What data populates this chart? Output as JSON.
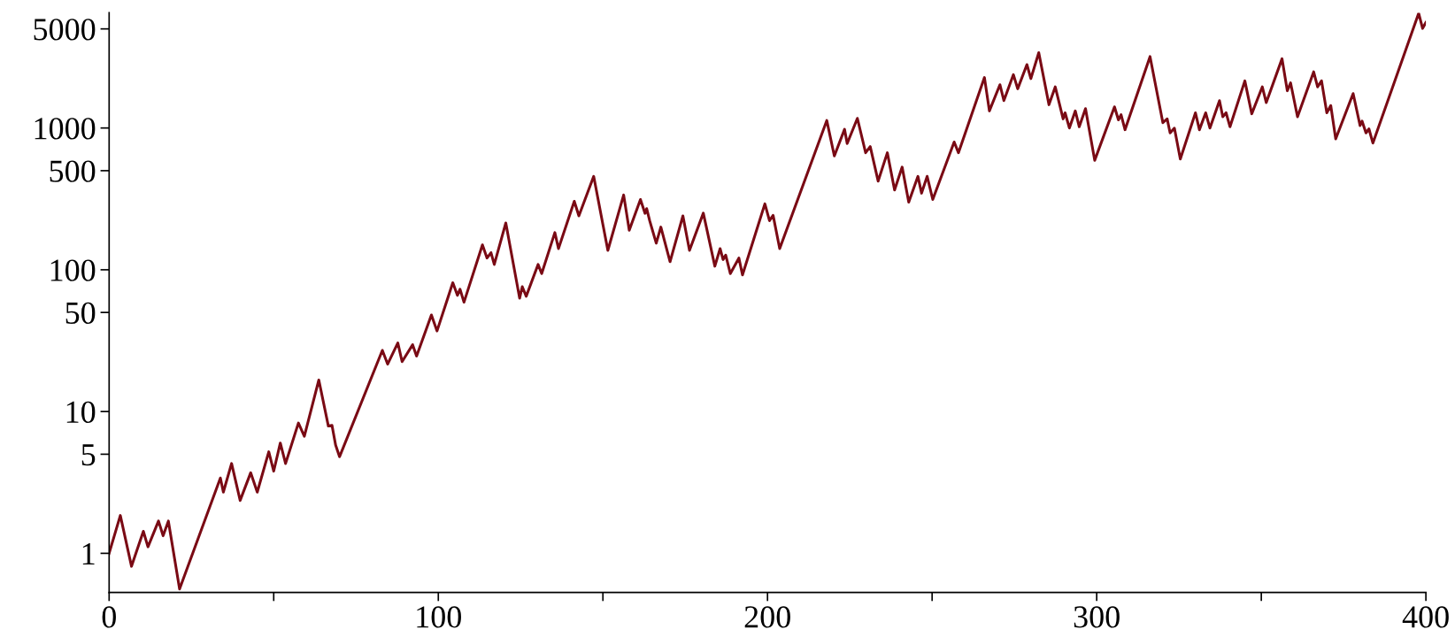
{
  "chart_data": {
    "type": "line",
    "log": "y",
    "xlim": [
      0,
      400
    ],
    "ylim": [
      0.53,
      6500
    ],
    "xticks": [
      0,
      {
        "value": 50,
        "label": null
      },
      100,
      {
        "value": 150,
        "label": null
      },
      200,
      {
        "value": 250,
        "label": null
      },
      300,
      {
        "value": 350,
        "label": null
      },
      400
    ],
    "yticks": [
      1,
      5,
      10,
      50,
      100,
      500,
      1000,
      5000
    ],
    "grid": false,
    "marker": "none",
    "line_style": "solid",
    "series": [
      {
        "color": "#7a0a14",
        "x": [
          0,
          3.4,
          6.8,
          10.4,
          11.8,
          15,
          16.4,
          18,
          21.4,
          33.8,
          34.7,
          37.2,
          39.8,
          43,
          45,
          48.5,
          50,
          52,
          53.6,
          57.5,
          59.3,
          63.7,
          66.6,
          67.7,
          68.8,
          70,
          83,
          84.6,
          87.7,
          89,
          92.2,
          93.4,
          97.9,
          99.6,
          104.4,
          105.8,
          106.6,
          107.8,
          113.4,
          114.8,
          116,
          117,
          120.5,
          124.7,
          125.5,
          126.7,
          130.3,
          131.4,
          135.4,
          136.5,
          141.3,
          142.7,
          147.2,
          151.5,
          156.3,
          158,
          161.4,
          162.8,
          163.3,
          164.2,
          166.2,
          167.6,
          170.4,
          174.3,
          176.3,
          180.5,
          184,
          185.6,
          186.5,
          187.3,
          188.7,
          191.3,
          192.4,
          199.2,
          200.6,
          201.7,
          203.7,
          218,
          220.3,
          223.4,
          224.2,
          227.3,
          229.8,
          231.2,
          233.6,
          236.4,
          238.6,
          240.9,
          242.9,
          245.7,
          246.8,
          248.5,
          250.2,
          256.7,
          258,
          265.9,
          267.4,
          270.6,
          271.8,
          274.7,
          276,
          278.8,
          280,
          282.4,
          285.5,
          287.4,
          289.8,
          290.4,
          291.7,
          293.5,
          294.7,
          296.6,
          299.4,
          305.4,
          306.6,
          307.4,
          308.6,
          316.2,
          320.1,
          321.4,
          322.3,
          323.6,
          325.4,
          330,
          331.2,
          333.1,
          334.4,
          337.3,
          338.3,
          339.3,
          340.5,
          345,
          347.1,
          350.3,
          351.5,
          356.3,
          357.9,
          358.9,
          361,
          365.9,
          367.1,
          368.3,
          369.9,
          371.1,
          372.6,
          377.9,
          380,
          380.6,
          381.8,
          382.7,
          383.9,
          397.8,
          399,
          400
        ],
        "values": [
          1,
          1.85,
          0.81,
          1.43,
          1.11,
          1.69,
          1.33,
          1.69,
          0.56,
          3.4,
          2.7,
          4.3,
          2.36,
          3.7,
          2.7,
          5.2,
          3.8,
          6.0,
          4.3,
          8.3,
          6.7,
          16.7,
          7.9,
          8,
          5.8,
          4.8,
          27,
          21.6,
          30.5,
          22.5,
          29.6,
          24.6,
          48,
          37,
          81,
          66,
          73,
          59,
          150,
          121,
          132,
          109,
          214,
          63,
          76,
          65,
          109,
          94,
          183,
          141,
          304,
          240,
          456,
          137,
          337,
          190,
          313,
          250,
          270,
          222,
          154,
          200,
          114,
          240,
          137,
          251,
          106,
          141,
          118,
          127,
          94,
          121,
          92,
          292,
          222,
          242,
          141,
          1130,
          635,
          979,
          777,
          1170,
          669,
          740,
          422,
          669,
          365,
          530,
          300,
          456,
          347,
          456,
          313,
          796,
          669,
          2270,
          1320,
          2020,
          1560,
          2380,
          1890,
          2800,
          2230,
          3400,
          1460,
          1950,
          1160,
          1280,
          1000,
          1320,
          1020,
          1370,
          592,
          1410,
          1140,
          1240,
          972,
          3190,
          1090,
          1160,
          923,
          998,
          604,
          1280,
          972,
          1280,
          998,
          1560,
          1200,
          1280,
          1020,
          2150,
          1260,
          1950,
          1510,
          3080,
          1830,
          2080,
          1200,
          2490,
          1950,
          2150,
          1280,
          1440,
          837,
          1750,
          1040,
          1120,
          923,
          985,
          783,
          6450,
          5040,
          5550
        ]
      }
    ]
  }
}
